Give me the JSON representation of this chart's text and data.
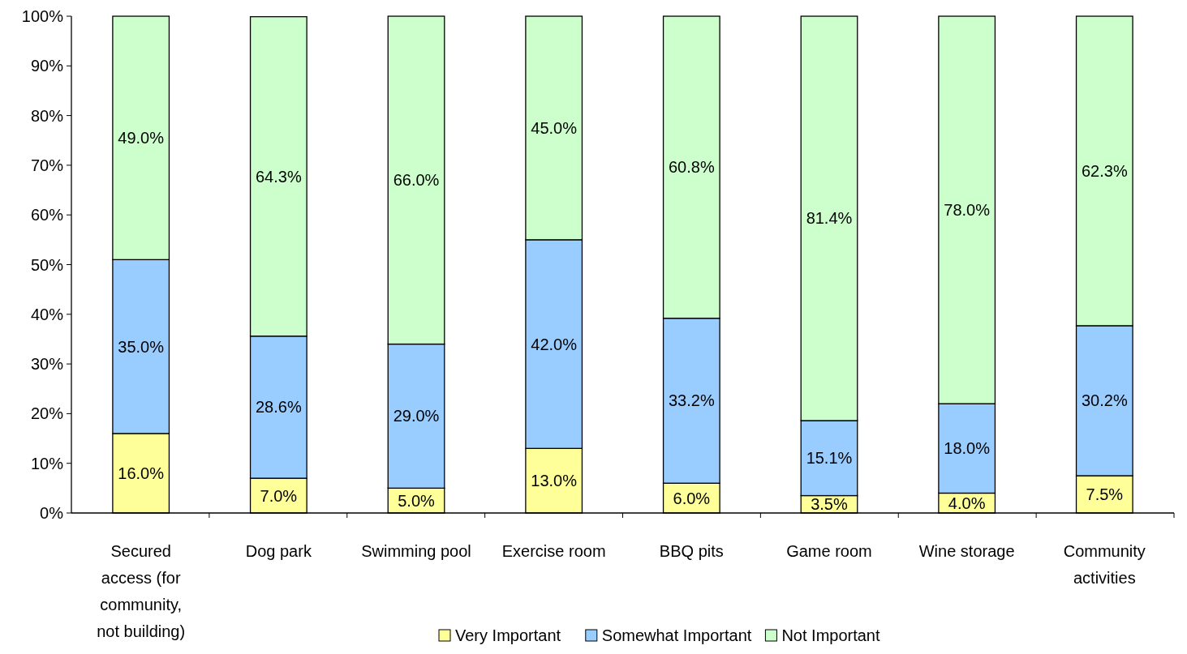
{
  "chart_data": {
    "type": "bar",
    "stacked": true,
    "categories": [
      "Secured access (for community, not building)",
      "Dog park",
      "Swimming pool",
      "Exercise room",
      "BBQ pits",
      "Game room",
      "Wine storage",
      "Community activities"
    ],
    "series": [
      {
        "name": "Very Important",
        "color": "#ffff99",
        "values": [
          16.0,
          7.0,
          5.0,
          13.0,
          6.0,
          3.5,
          4.0,
          7.5
        ],
        "value_labels": [
          "16.0%",
          "7.0%",
          "5.0%",
          "13.0%",
          "6.0%",
          "3.5%",
          "4.0%",
          "7.5%"
        ]
      },
      {
        "name": "Somewhat Important",
        "color": "#99ccff",
        "values": [
          35.0,
          28.6,
          29.0,
          42.0,
          33.2,
          15.1,
          18.0,
          30.2
        ],
        "value_labels": [
          "35.0%",
          "28.6%",
          "29.0%",
          "42.0%",
          "33.2%",
          "15.1%",
          "18.0%",
          "30.2%"
        ]
      },
      {
        "name": "Not Important",
        "color": "#ccffcc",
        "values": [
          49.0,
          64.3,
          66.0,
          45.0,
          60.8,
          81.4,
          78.0,
          62.3
        ],
        "value_labels": [
          "49.0%",
          "64.3%",
          "66.0%",
          "45.0%",
          "60.8%",
          "81.4%",
          "78.0%",
          "62.3%"
        ]
      }
    ],
    "ylim": [
      0,
      100
    ],
    "yticks": [
      {
        "value": 0,
        "label": "0%"
      },
      {
        "value": 10,
        "label": "10%"
      },
      {
        "value": 20,
        "label": "20%"
      },
      {
        "value": 30,
        "label": "30%"
      },
      {
        "value": 40,
        "label": "40%"
      },
      {
        "value": 50,
        "label": "50%"
      },
      {
        "value": 60,
        "label": "60%"
      },
      {
        "value": 70,
        "label": "70%"
      },
      {
        "value": 80,
        "label": "80%"
      },
      {
        "value": 90,
        "label": "90%"
      },
      {
        "value": 100,
        "label": "100%"
      }
    ],
    "grid": false,
    "legend": "bottom"
  }
}
